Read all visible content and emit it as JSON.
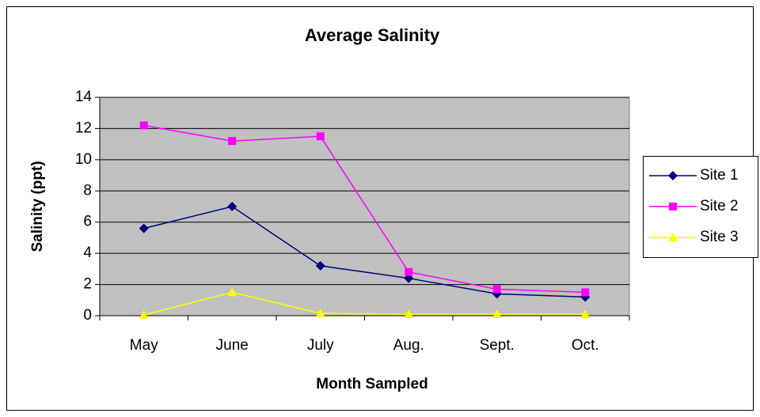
{
  "chart_data": {
    "type": "line",
    "title": "Average Salinity",
    "x_label": "Month Sampled",
    "y_label": "Salinity (ppt)",
    "categories": [
      "May",
      "June",
      "July",
      "Aug.",
      "Sept.",
      "Oct."
    ],
    "series": [
      {
        "name": "Site 1",
        "color": "#000080",
        "marker": "diamond",
        "values": [
          5.6,
          7.0,
          3.2,
          2.4,
          1.4,
          1.2
        ]
      },
      {
        "name": "Site 2",
        "color": "#ff00ff",
        "marker": "square",
        "values": [
          12.2,
          11.2,
          11.5,
          2.8,
          1.7,
          1.5
        ]
      },
      {
        "name": "Site 3",
        "color": "#ffff00",
        "marker": "triangle",
        "values": [
          0.05,
          1.5,
          0.15,
          0.1,
          0.1,
          0.1
        ]
      }
    ],
    "ylim": [
      0,
      14
    ],
    "yticks": [
      0,
      2,
      4,
      6,
      8,
      10,
      12,
      14
    ],
    "grid": true,
    "legend": "right"
  }
}
